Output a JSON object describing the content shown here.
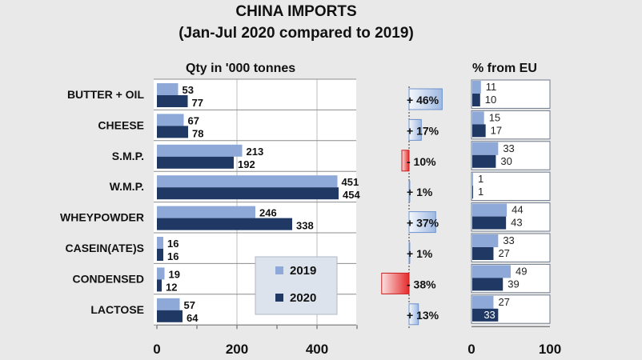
{
  "title": "CHINA IMPORTS",
  "subtitle": "(Jan-Jul 2020 compared to 2019)",
  "left_panel_title": "Qty in '000 tonnes",
  "right_panel_title": "% from EU",
  "colors": {
    "s2019": "#8ea9d8",
    "s2020": "#1f3864",
    "positive_change": "#c5d6f0",
    "negative_change": "#e52a2a"
  },
  "chart_data": [
    {
      "type": "bar",
      "orientation": "horizontal",
      "title": "Qty in '000 tonnes",
      "categories": [
        "BUTTER + OIL",
        "CHEESE",
        "S.M.P.",
        "W.M.P.",
        "WHEYPOWDER",
        "CASEIN(ATE)S",
        "CONDENSED",
        "LACTOSE"
      ],
      "series": [
        {
          "name": "2019",
          "values": [
            53,
            67,
            213,
            451,
            246,
            16,
            19,
            57
          ]
        },
        {
          "name": "2020",
          "values": [
            77,
            78,
            192,
            454,
            338,
            16,
            12,
            64
          ]
        }
      ],
      "xlim": [
        0,
        500
      ],
      "xticks": [
        "0",
        "200",
        "400"
      ],
      "legend": "bottom-right"
    },
    {
      "type": "bar",
      "orientation": "horizontal",
      "title": "",
      "categories": [
        "BUTTER + OIL",
        "CHEESE",
        "S.M.P.",
        "W.M.P.",
        "WHEYPOWDER",
        "CASEIN(ATE)S",
        "CONDENSED",
        "LACTOSE"
      ],
      "values": [
        46,
        17,
        -10,
        1,
        37,
        1,
        -38,
        13
      ],
      "labels": [
        "+ 46%",
        "+ 17%",
        "- 10%",
        "+ 1%",
        "+ 37%",
        "+ 1%",
        "- 38%",
        "+ 13%"
      ]
    },
    {
      "type": "bar",
      "orientation": "horizontal",
      "title": "% from EU",
      "categories": [
        "BUTTER + OIL",
        "CHEESE",
        "S.M.P.",
        "W.M.P.",
        "WHEYPOWDER",
        "CASEIN(ATE)S",
        "CONDENSED",
        "LACTOSE"
      ],
      "series": [
        {
          "name": "2019",
          "values": [
            11,
            15,
            33,
            1,
            44,
            33,
            49,
            27
          ]
        },
        {
          "name": "2020",
          "values": [
            10,
            17,
            30,
            1,
            43,
            27,
            39,
            33
          ]
        }
      ],
      "xlim": [
        0,
        100
      ],
      "xticks": [
        "0",
        "100"
      ]
    }
  ]
}
